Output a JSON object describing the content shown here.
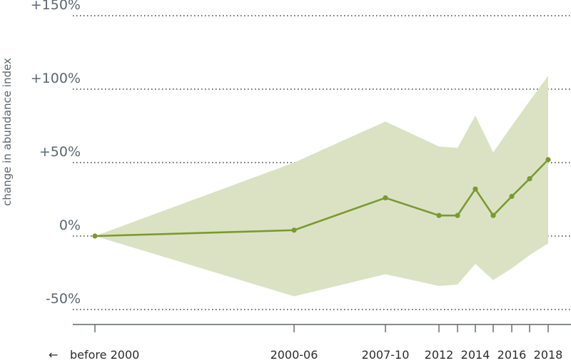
{
  "chart_data": {
    "type": "line",
    "ylabel": "change in abundance index",
    "xlabel": "",
    "x_tick_labels": [
      "before 2000",
      "2000-06",
      "2007-10",
      "2012",
      "2014",
      "2016",
      "2018"
    ],
    "x_tick_arrow": "←",
    "y_ticks": [
      -50,
      0,
      50,
      100,
      150
    ],
    "y_tick_labels": [
      "-50%",
      "0%",
      "+50%",
      "+100%",
      "+150%"
    ],
    "ylim": [
      -60,
      155
    ],
    "grid": true,
    "series": [
      {
        "x": [
          "before 2000",
          "2000-06",
          "2007-10",
          "2012",
          "2013",
          "2014",
          "2015",
          "2016",
          "2017",
          "2018"
        ],
        "values": [
          0,
          4,
          26,
          14,
          14,
          32,
          14,
          27,
          39,
          52
        ],
        "lower": [
          0,
          -41,
          -26,
          -34,
          -33,
          -19,
          -30,
          -22,
          -13,
          -5
        ],
        "upper": [
          0,
          50,
          78,
          61,
          60,
          82,
          57,
          75,
          92,
          109
        ],
        "color": "#7a9a2e",
        "band_color": "#dbe2c4"
      }
    ]
  }
}
